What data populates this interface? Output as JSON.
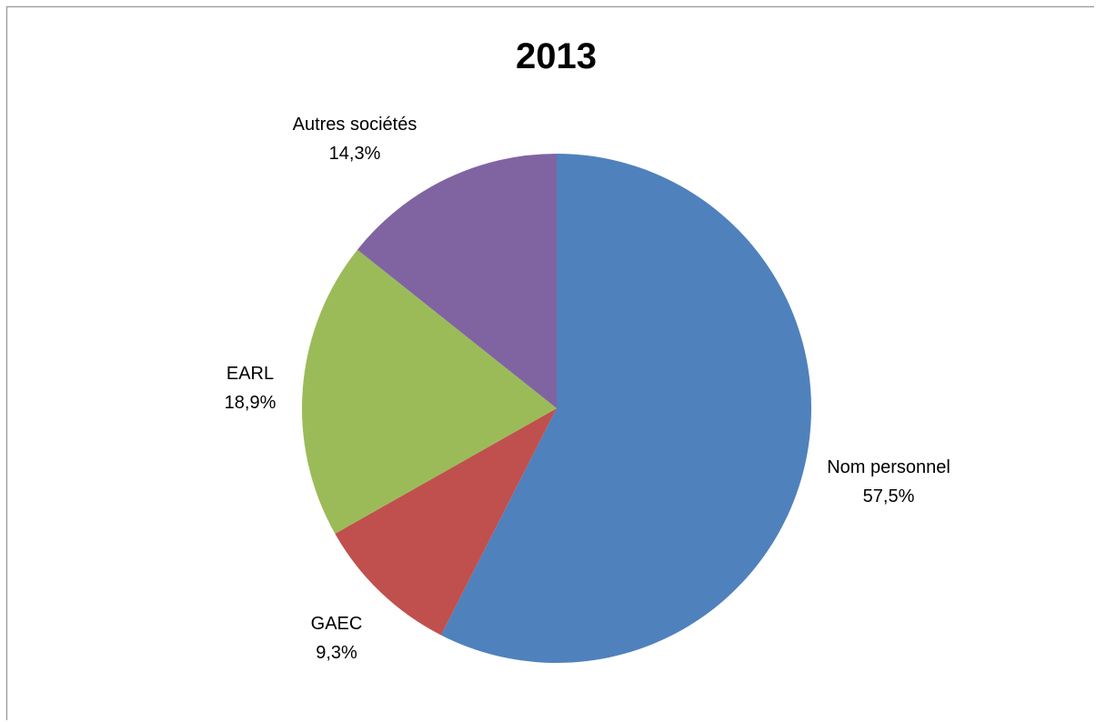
{
  "chart_data": {
    "type": "pie",
    "title": "2013",
    "slices": [
      {
        "label": "Nom personnel",
        "value": 57.5,
        "value_label": "57,5%",
        "color": "#4f81bd"
      },
      {
        "label": "GAEC",
        "value": 9.3,
        "value_label": "9,3%",
        "color": "#c0504d"
      },
      {
        "label": "EARL",
        "value": 18.9,
        "value_label": "18,9%",
        "color": "#9bbb59"
      },
      {
        "label": "Autres sociétés",
        "value": 14.3,
        "value_label": "14,3%",
        "color": "#8064a2"
      }
    ],
    "start_angle": "12 o'clock",
    "direction": "clockwise",
    "legend": "none",
    "data_labels": "outside"
  }
}
